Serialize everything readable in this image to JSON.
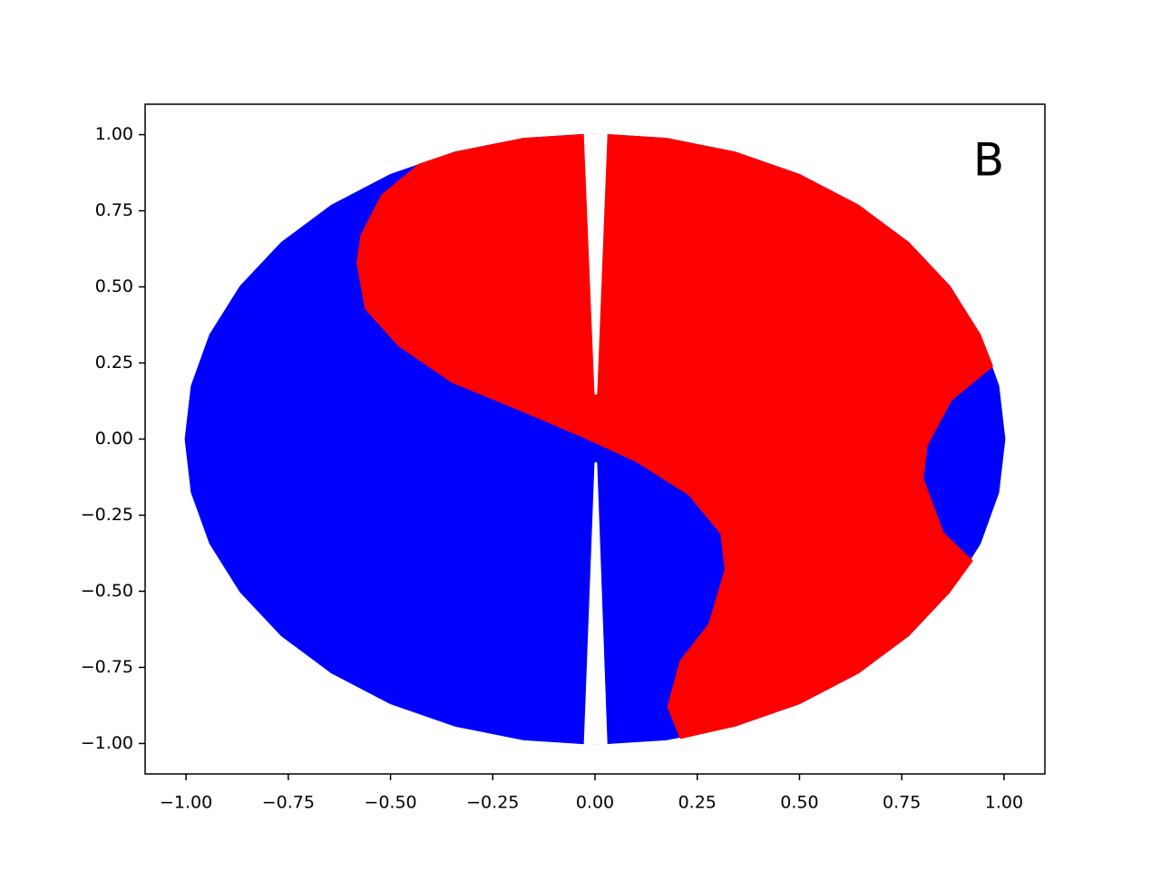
{
  "chart_data": {
    "type": "polygon",
    "annotation": "B",
    "xlim": [
      -1.1,
      1.1
    ],
    "ylim": [
      -1.1,
      1.1
    ],
    "xticks": [
      {
        "value": -1,
        "label": "−1.00"
      },
      {
        "value": -0.75,
        "label": "−0.75"
      },
      {
        "value": -0.5,
        "label": "−0.50"
      },
      {
        "value": -0.25,
        "label": "−0.25"
      },
      {
        "value": 0,
        "label": "0.00"
      },
      {
        "value": 0.25,
        "label": "0.25"
      },
      {
        "value": 0.5,
        "label": "0.50"
      },
      {
        "value": 0.75,
        "label": "0.75"
      },
      {
        "value": 1,
        "label": "1.00"
      }
    ],
    "yticks": [
      {
        "value": -1,
        "label": "−1.00"
      },
      {
        "value": -0.75,
        "label": "−0.75"
      },
      {
        "value": -0.5,
        "label": "−0.50"
      },
      {
        "value": -0.25,
        "label": "−0.25"
      },
      {
        "value": 0,
        "label": "0.00"
      },
      {
        "value": 0.25,
        "label": "0.25"
      },
      {
        "value": 0.5,
        "label": "0.50"
      },
      {
        "value": 0.75,
        "label": "0.75"
      },
      {
        "value": 1,
        "label": "1.00"
      }
    ],
    "grid": false,
    "series": [
      {
        "color": "#0000ff",
        "x": [
          1,
          0.985,
          0.94,
          0.866,
          0.766,
          0.643,
          0.5,
          0.342,
          0.174,
          0,
          -0.174,
          -0.342,
          -0.5,
          -0.643,
          -0.766,
          -0.866,
          -0.94,
          -0.985,
          -1,
          -0.985,
          -0.94,
          -0.866,
          -0.766,
          -0.643,
          -0.5,
          -0.342,
          -0.174,
          0,
          0.174,
          0.342,
          0.5,
          0.643,
          0.766,
          0.866,
          0.94,
          0.985
        ],
        "y": [
          0,
          0.174,
          0.342,
          0.5,
          0.643,
          0.766,
          0.866,
          0.94,
          0.985,
          1,
          0.985,
          0.94,
          0.866,
          0.766,
          0.643,
          0.5,
          0.342,
          0.174,
          0,
          -0.174,
          -0.342,
          -0.5,
          -0.643,
          -0.766,
          -0.866,
          -0.94,
          -0.985,
          -1,
          -0.985,
          -0.94,
          -0.866,
          -0.766,
          -0.643,
          -0.5,
          -0.342,
          -0.174
        ]
      },
      {
        "color": "#ff0000",
        "x": [
          -0.43,
          -0.342,
          -0.174,
          0,
          0.174,
          0.342,
          0.5,
          0.643,
          0.766,
          0.866,
          0.94,
          0.97,
          0.87,
          0.81,
          0.8,
          0.85,
          0.92,
          0.866,
          0.766,
          0.643,
          0.5,
          0.342,
          0.21,
          0.18,
          0.21,
          0.28,
          0.32,
          0.31,
          0.23,
          0.1,
          -0.03,
          -0.17,
          -0.35,
          -0.48,
          -0.56,
          -0.58,
          -0.57,
          -0.52
        ],
        "y": [
          0.9,
          0.94,
          0.985,
          1,
          0.985,
          0.94,
          0.866,
          0.766,
          0.643,
          0.5,
          0.342,
          0.24,
          0.13,
          -0.02,
          -0.13,
          -0.31,
          -0.4,
          -0.5,
          -0.643,
          -0.766,
          -0.866,
          -0.94,
          -0.98,
          -0.88,
          -0.73,
          -0.61,
          -0.43,
          -0.31,
          -0.18,
          -0.07,
          0.01,
          0.09,
          0.19,
          0.31,
          0.43,
          0.58,
          0.67,
          0.8
        ]
      },
      {
        "color": "#ffffff",
        "x": [
          -0.024,
          0.027,
          0.002
        ],
        "y": [
          1,
          1,
          0.15
        ]
      },
      {
        "color": "#ffffff",
        "x": [
          -0.024,
          0.027,
          0.002
        ],
        "y": [
          -1,
          -1,
          -0.08
        ]
      }
    ]
  }
}
